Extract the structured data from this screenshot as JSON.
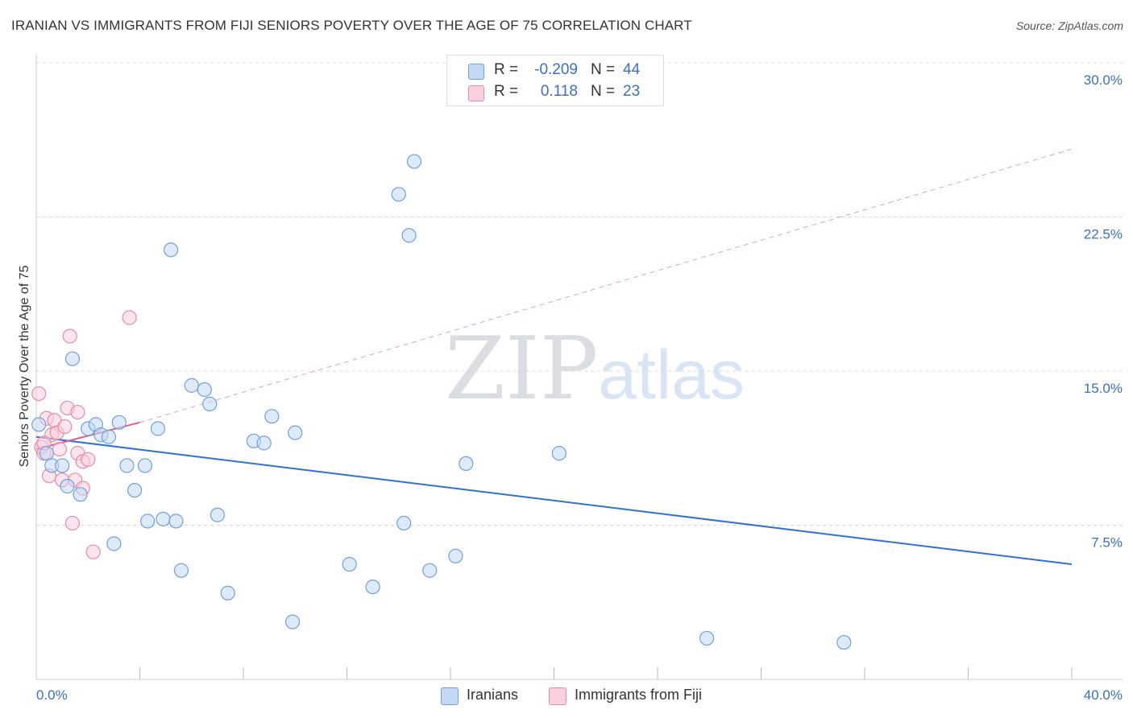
{
  "header": {
    "title": "IRANIAN VS IMMIGRANTS FROM FIJI SENIORS POVERTY OVER THE AGE OF 75 CORRELATION CHART",
    "source": "Source: ZipAtlas.com"
  },
  "watermark": {
    "part1": "ZIP",
    "part2": "atlas"
  },
  "legend": {
    "rows": [
      {
        "r_label": "R =",
        "r_value": "-0.209",
        "n_label": "N =",
        "n_value": "44",
        "color": "#a9c6ef",
        "border": "#6f9fe0"
      },
      {
        "r_label": "R =",
        "r_value": "0.118",
        "n_label": "N =",
        "n_value": "23",
        "color": "#f7c1d2",
        "border": "#e88aa8"
      }
    ]
  },
  "bottom_legend": {
    "series1": "Iranians",
    "series2": "Immigrants from Fiji"
  },
  "chart_data": {
    "type": "scatter",
    "title": "IRANIAN VS IMMIGRANTS FROM FIJI SENIORS POVERTY OVER THE AGE OF 75 CORRELATION CHART",
    "xlabel": "",
    "ylabel": "Seniors Poverty Over the Age of 75",
    "xlim": [
      0,
      40
    ],
    "ylim": [
      0,
      30
    ],
    "x_tick_labels": [
      {
        "value": 0,
        "label": "0.0%"
      },
      {
        "value": 40,
        "label": "40.0%"
      }
    ],
    "y_tick_labels": [
      {
        "value": 7.5,
        "label": "7.5%"
      },
      {
        "value": 15.0,
        "label": "15.0%"
      },
      {
        "value": 22.5,
        "label": "22.5%"
      },
      {
        "value": 30.0,
        "label": "30.0%"
      }
    ],
    "x_minor_ticks": [
      4,
      8,
      12,
      16,
      20,
      24,
      28,
      32,
      36,
      40
    ],
    "grid": "horizontal-dashed",
    "series": [
      {
        "name": "Iranians",
        "color": "#6f9fe0",
        "fill": "#c5d8f3",
        "points": [
          [
            0.1,
            12.4
          ],
          [
            0.4,
            11.0
          ],
          [
            0.6,
            10.4
          ],
          [
            1.0,
            10.4
          ],
          [
            1.2,
            9.4
          ],
          [
            1.4,
            15.6
          ],
          [
            1.7,
            9.0
          ],
          [
            2.0,
            12.2
          ],
          [
            2.3,
            12.4
          ],
          [
            2.5,
            11.9
          ],
          [
            2.8,
            11.8
          ],
          [
            3.0,
            6.6
          ],
          [
            3.2,
            12.5
          ],
          [
            3.5,
            10.4
          ],
          [
            3.8,
            9.2
          ],
          [
            4.2,
            10.4
          ],
          [
            4.3,
            7.7
          ],
          [
            4.7,
            12.2
          ],
          [
            4.9,
            7.8
          ],
          [
            5.2,
            20.9
          ],
          [
            5.4,
            7.7
          ],
          [
            5.6,
            5.3
          ],
          [
            6.0,
            14.3
          ],
          [
            6.5,
            14.1
          ],
          [
            6.7,
            13.4
          ],
          [
            7.0,
            8.0
          ],
          [
            7.4,
            4.2
          ],
          [
            8.4,
            11.6
          ],
          [
            8.8,
            11.5
          ],
          [
            9.1,
            12.8
          ],
          [
            9.9,
            2.8
          ],
          [
            10.0,
            12.0
          ],
          [
            12.1,
            5.6
          ],
          [
            13.0,
            4.5
          ],
          [
            14.0,
            23.6
          ],
          [
            14.2,
            7.6
          ],
          [
            14.4,
            21.6
          ],
          [
            14.6,
            25.2
          ],
          [
            15.2,
            5.3
          ],
          [
            16.2,
            6.0
          ],
          [
            16.6,
            10.5
          ],
          [
            20.2,
            11.0
          ],
          [
            25.9,
            2.0
          ],
          [
            31.2,
            1.8
          ]
        ],
        "trend": {
          "x": [
            0,
            40
          ],
          "y": [
            11.8,
            5.6
          ]
        }
      },
      {
        "name": "Immigrants from Fiji",
        "color": "#e88aa8",
        "fill": "#f9d0dd",
        "points": [
          [
            0.1,
            13.9
          ],
          [
            0.2,
            11.3
          ],
          [
            0.3,
            11.0
          ],
          [
            0.4,
            12.7
          ],
          [
            0.5,
            9.9
          ],
          [
            0.6,
            11.9
          ],
          [
            0.7,
            12.6
          ],
          [
            0.8,
            12.0
          ],
          [
            0.9,
            11.2
          ],
          [
            1.0,
            9.7
          ],
          [
            1.1,
            12.3
          ],
          [
            1.2,
            13.2
          ],
          [
            1.3,
            16.7
          ],
          [
            1.4,
            7.6
          ],
          [
            1.5,
            9.7
          ],
          [
            1.6,
            13.0
          ],
          [
            1.6,
            11.0
          ],
          [
            1.8,
            9.3
          ],
          [
            1.8,
            10.6
          ],
          [
            2.0,
            10.7
          ],
          [
            2.2,
            6.2
          ],
          [
            3.6,
            17.6
          ],
          [
            0.3,
            11.5
          ]
        ],
        "trend_solid": {
          "x": [
            0,
            4.0
          ],
          "y": [
            11.2,
            12.5
          ]
        },
        "trend_dashed": {
          "x": [
            4.0,
            40
          ],
          "y": [
            12.5,
            25.8
          ]
        }
      }
    ]
  }
}
